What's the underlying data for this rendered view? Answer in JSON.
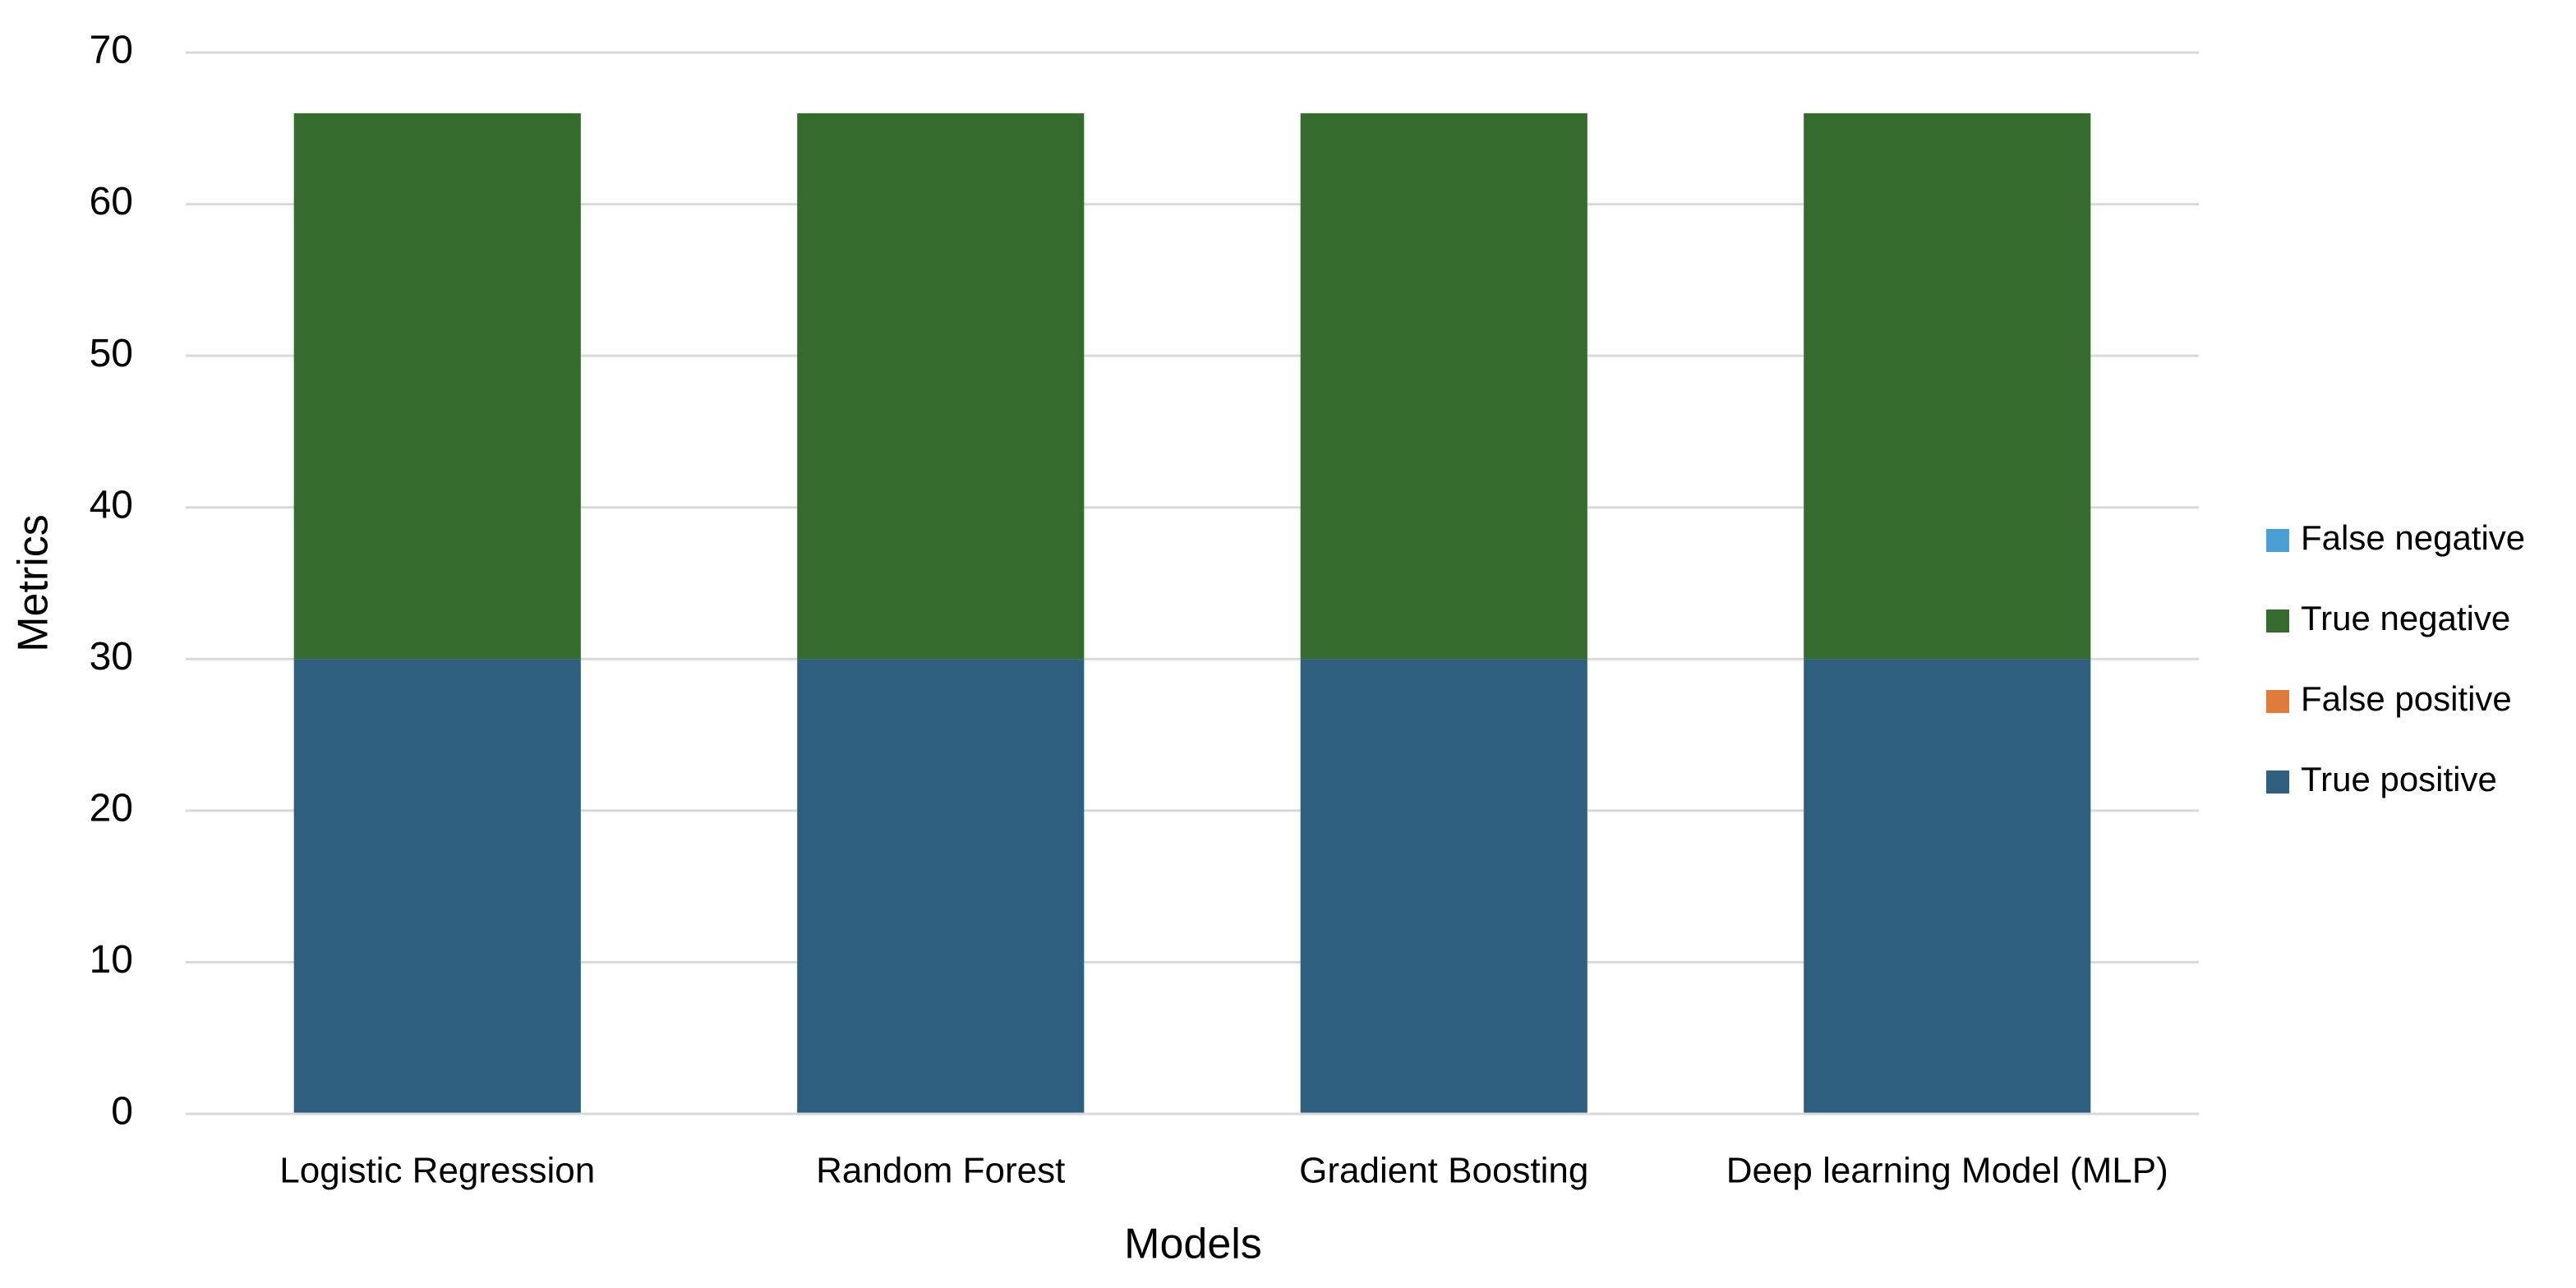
{
  "chart_data": {
    "type": "stacked_bar",
    "x_label": "Models",
    "y_label": "Metrics",
    "categories": [
      "Logistic Regression",
      "Random Forest",
      "Gradient Boosting",
      "Deep learning Model (MLP)"
    ],
    "series": [
      {
        "name": "True positive",
        "color": "#2e5f7f",
        "values": [
          30,
          30,
          30,
          30
        ]
      },
      {
        "name": "False positive",
        "color": "#e07b39",
        "values": [
          0,
          0,
          0,
          0
        ]
      },
      {
        "name": "True negative",
        "color": "#356b2d",
        "values": [
          36,
          36,
          36,
          36
        ]
      },
      {
        "name": "False negative",
        "color": "#4a9fd4",
        "values": [
          0,
          0,
          0,
          0
        ]
      }
    ],
    "ylim": [
      0,
      70
    ],
    "yticks": [
      0,
      10,
      20,
      30,
      40,
      50,
      60,
      70
    ],
    "grid": true,
    "legend": "right"
  }
}
